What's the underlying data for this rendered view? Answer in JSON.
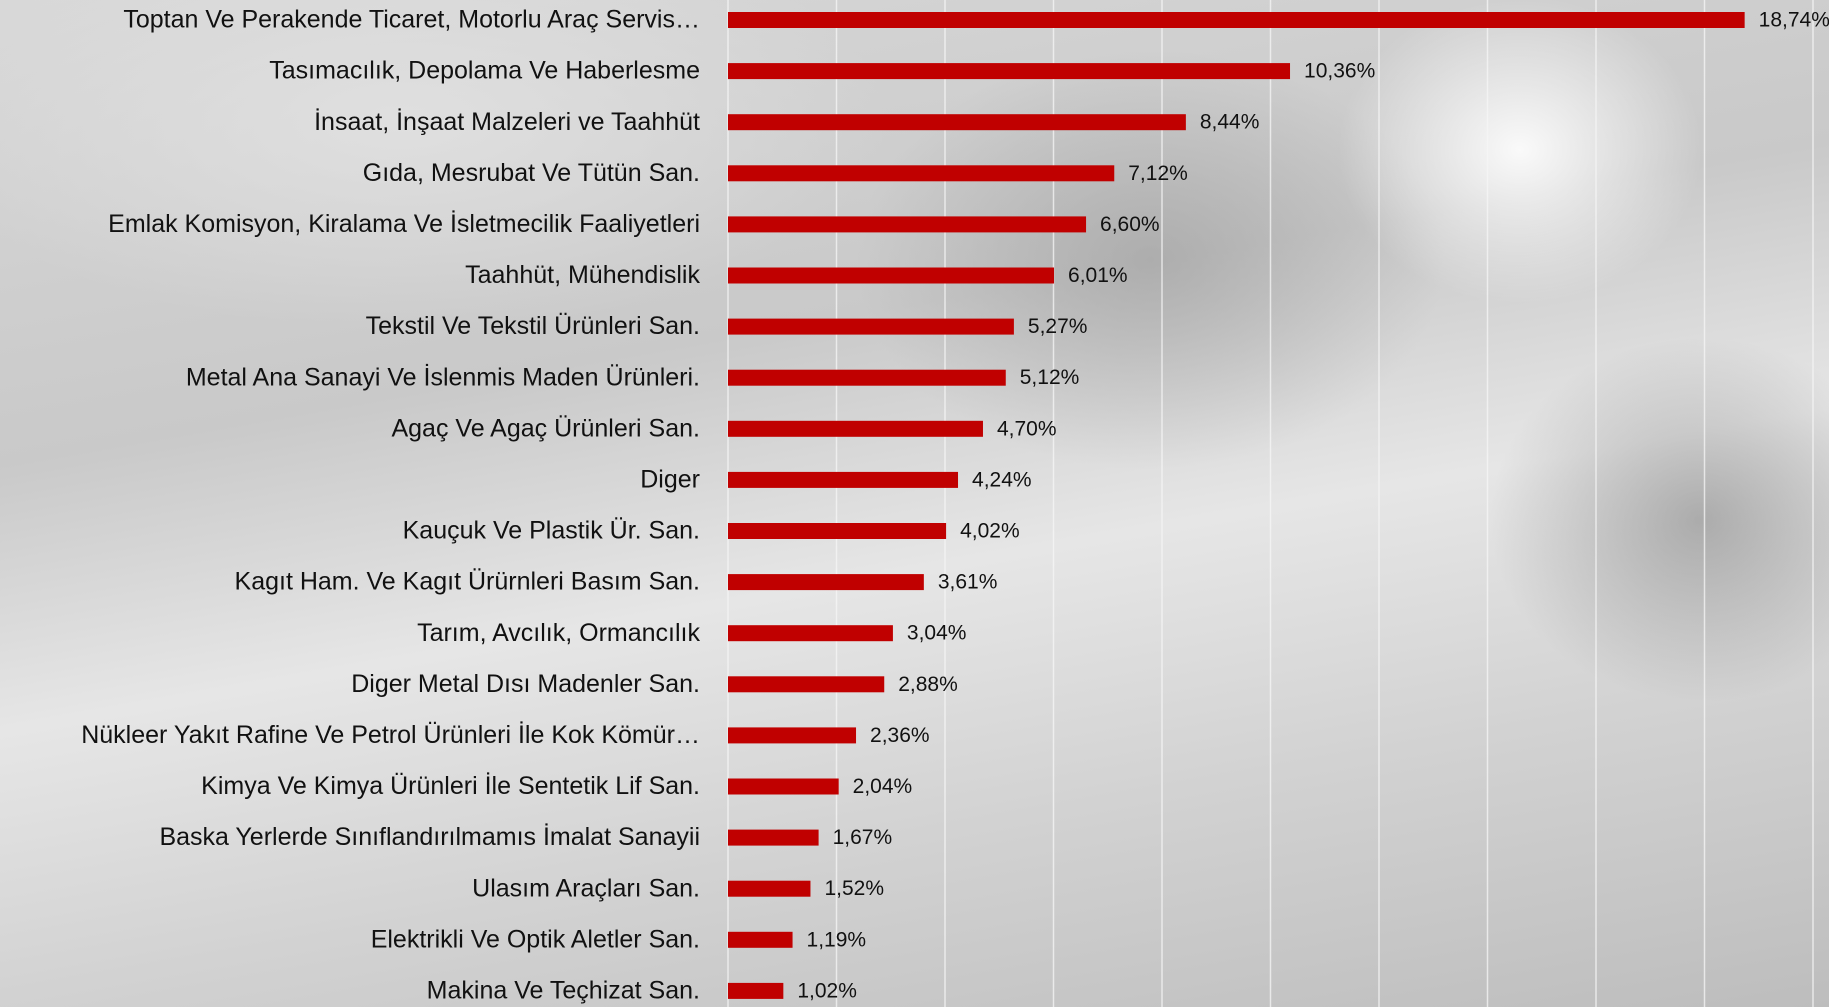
{
  "chart_data": {
    "type": "barh",
    "categories": [
      "Toptan Ve Perakende Ticaret, Motorlu Araç Servis…",
      "Tasımacılık, Depolama Ve Haberlesme",
      "İnsaat, İnşaat Malzeleri ve Taahhüt",
      "Gıda, Mesrubat Ve Tütün San.",
      "Emlak Komisyon, Kiralama Ve İsletmecilik Faaliyetleri",
      "Taahhüt, Mühendislik",
      "Tekstil Ve Tekstil Ürünleri San.",
      "Metal Ana Sanayi Ve İslenmis Maden Ürünleri.",
      "Agaç Ve Agaç Ürünleri San.",
      "Diger",
      "Kauçuk Ve Plastik Ür. San.",
      "Kagıt Ham. Ve Kagıt Ürürnleri Basım San.",
      "Tarım, Avcılık, Ormancılık",
      "Diger Metal Dısı Madenler San.",
      "Nükleer Yakıt Rafine Ve Petrol Ürünleri İle Kok Kömür…",
      "Kimya Ve Kimya Ürünleri İle Sentetik Lif San.",
      "Baska Yerlerde Sınıflandırılmamıs İmalat Sanayii",
      "Ulasım Araçları San.",
      "Elektrikli Ve Optik Aletler San.",
      "Makina Ve Teçhizat San."
    ],
    "values": [
      18.74,
      10.36,
      8.44,
      7.12,
      6.6,
      6.01,
      5.27,
      5.12,
      4.7,
      4.24,
      4.02,
      3.61,
      3.04,
      2.88,
      2.36,
      2.04,
      1.67,
      1.52,
      1.19,
      1.02
    ],
    "value_labels": [
      "18,74%",
      "10,36%",
      "8,44%",
      "7,12%",
      "6,60%",
      "6,01%",
      "5,27%",
      "5,12%",
      "4,70%",
      "4,24%",
      "4,02%",
      "3,61%",
      "3,04%",
      "2,88%",
      "2,36%",
      "2,04%",
      "1,67%",
      "1,52%",
      "1,19%",
      "1,02%"
    ],
    "color": "#c00000",
    "xlim": [
      0,
      20
    ],
    "xticks": [
      0,
      2,
      4,
      6,
      8,
      10,
      12,
      14,
      16,
      18,
      20
    ],
    "grid": true
  }
}
